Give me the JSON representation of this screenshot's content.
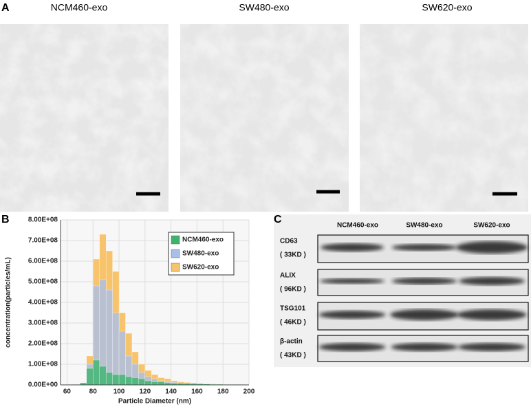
{
  "panels": {
    "a": {
      "label": "A",
      "images": [
        {
          "title": "NCM460-exo"
        },
        {
          "title": "SW480-exo"
        },
        {
          "title": "SW620-exo"
        }
      ]
    },
    "b": {
      "label": "B"
    },
    "c": {
      "label": "C",
      "columns": [
        "NCM460-exo",
        "SW480-exo",
        "SW620-exo"
      ],
      "rows": [
        {
          "protein": "CD63",
          "size": "( 33KD )"
        },
        {
          "protein": "ALIX",
          "size": "( 96KD )"
        },
        {
          "protein": "TSG101",
          "size": "( 46KD )"
        },
        {
          "protein": "β-actin",
          "size": "( 43KD )"
        }
      ]
    }
  },
  "chart_data": {
    "type": "histogram",
    "xlabel": "Particle Diameter (nm)",
    "ylabel": "concentration(particles/mL)",
    "bins": [
      55,
      60,
      65,
      70,
      75,
      80,
      85,
      90,
      95,
      100,
      105,
      110,
      115,
      120,
      125,
      130,
      135,
      140,
      145,
      150,
      155,
      160,
      165,
      170,
      175,
      180,
      185,
      190,
      195,
      200
    ],
    "series": [
      {
        "name": "NCM460-exo",
        "color": "#3cb46e",
        "values": [
          0,
          0,
          2000000.0,
          10000000.0,
          80000000.0,
          120000000.0,
          90000000.0,
          60000000.0,
          50000000.0,
          50000000.0,
          40000000.0,
          35000000.0,
          30000000.0,
          20000000.0,
          15000000.0,
          15000000.0,
          10000000.0,
          8000000.0,
          8000000.0,
          7000000.0,
          6000000.0,
          5000000.0,
          4000000.0,
          3000000.0,
          3000000.0,
          2000000.0,
          2000000.0,
          2000000.0,
          1000000.0
        ]
      },
      {
        "name": "SW480-exo",
        "color": "#a9bfe9",
        "values": [
          0,
          0,
          1000000.0,
          5000000.0,
          100000000.0,
          480000000.0,
          510000000.0,
          460000000.0,
          350000000.0,
          260000000.0,
          140000000.0,
          100000000.0,
          60000000.0,
          40000000.0,
          30000000.0,
          20000000.0,
          15000000.0,
          12000000.0,
          10000000.0,
          8000000.0,
          6000000.0,
          5000000.0,
          4000000.0,
          3000000.0,
          3000000.0,
          2000000.0,
          2000000.0,
          1000000.0,
          1000000.0
        ]
      },
      {
        "name": "SW620-exo",
        "color": "#f7c46c",
        "values": [
          0,
          0,
          2000000.0,
          10000000.0,
          140000000.0,
          610000000.0,
          730000000.0,
          650000000.0,
          550000000.0,
          350000000.0,
          250000000.0,
          160000000.0,
          100000000.0,
          70000000.0,
          50000000.0,
          35000000.0,
          30000000.0,
          20000000.0,
          15000000.0,
          12000000.0,
          10000000.0,
          8000000.0,
          6000000.0,
          5000000.0,
          4000000.0,
          3000000.0,
          3000000.0,
          2000000.0,
          2000000.0
        ]
      }
    ],
    "xlim": [
      55,
      200
    ],
    "ylim": [
      0,
      800000000.0
    ],
    "xticks": [
      60,
      80,
      100,
      120,
      140,
      160,
      180,
      200
    ],
    "yticks": [
      {
        "value": 0,
        "label": "0.00E+00"
      },
      {
        "value": 100000000.0,
        "label": "1.00E+08"
      },
      {
        "value": 200000000.0,
        "label": "2.00E+08"
      },
      {
        "value": 300000000.0,
        "label": "3.00E+08"
      },
      {
        "value": 400000000.0,
        "label": "4.00E+08"
      },
      {
        "value": 500000000.0,
        "label": "5.00E+08"
      },
      {
        "value": 600000000.0,
        "label": "6.00E+08"
      },
      {
        "value": 700000000.0,
        "label": "7.00E+08"
      },
      {
        "value": 800000000.0,
        "label": "8.00E+08"
      }
    ],
    "grid": true,
    "legend": "upper right"
  }
}
